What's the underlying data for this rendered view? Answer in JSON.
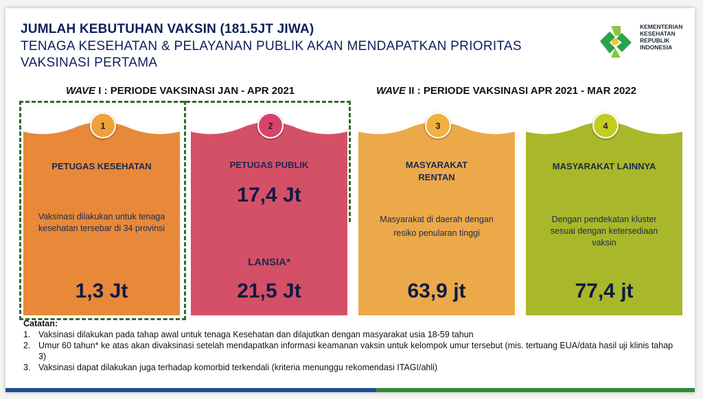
{
  "header": {
    "title": "JUMLAH KEBUTUHAN VAKSIN (181.5JT JIWA)",
    "subtitle": "TENAGA KESEHATAN & PELAYANAN PUBLIK AKAN MENDAPATKAN PRIORITAS VAKSINASI PERTAMA"
  },
  "logo": {
    "lines": [
      "KEMENTERIAN",
      "KESEHATAN",
      "REPUBLIK",
      "INDONESIA"
    ],
    "icon": "kemenkes-logo-icon"
  },
  "waves": [
    {
      "wave_word": "WAVE",
      "rest": " I : PERIODE VAKSINASI JAN - APR 2021"
    },
    {
      "wave_word": "WAVE",
      "rest": " II : PERIODE VAKSINASI APR 2021 - MAR 2022"
    }
  ],
  "cards": [
    {
      "number": "1",
      "title": "PETUGAS KESEHATAN",
      "description": "Vaksinasi dilakukan untuk tenaga kesehatan tersebar di 34 provinsi",
      "value": "1,3 Jt",
      "color": "#e8893a",
      "badge_color": "#f0a13a"
    },
    {
      "number": "2",
      "title": "PETUGAS PUBLIK",
      "value_top": "17,4 Jt",
      "subtitle": "LANSIA*",
      "value": "21,5 Jt",
      "color": "#d45067",
      "badge_color": "#d9436a"
    },
    {
      "number": "3",
      "title": "MASYARAKAT RENTAN",
      "description": "Masyarakat di daerah dengan resiko penularan tinggi",
      "value": "63,9 jt",
      "color": "#eca94a",
      "badge_color": "#f2b040"
    },
    {
      "number": "4",
      "title": "MASYARAKAT LAINNYA",
      "description": "Dengan pendekatan kluster sesuai dengan ketersediaan vaksin",
      "value": "77,4 jt",
      "color": "#a9b82a",
      "badge_color": "#c4cc1f"
    }
  ],
  "notes": {
    "heading": "Catatan:",
    "items": [
      {
        "num": "1.",
        "text": "Vaksinasi dilakukan pada tahap awal untuk tenaga Kesehatan dan dilajutkan dengan masyarakat usia 18-59 tahun"
      },
      {
        "num": "2.",
        "text": "Umur 60 tahun* ke atas akan divaksinasi setelah mendapatkan informasi keamanan vaksin untuk kelompok umur tersebut (mis. tertuang EUA/data hasil uji klinis tahap 3)"
      },
      {
        "num": "3.",
        "text": "Vaksinasi dapat dilakukan juga terhadap komorbid terkendali (kriteria menunggu rekomendasi ITAGI/ahli)"
      }
    ]
  },
  "colors": {
    "title": "#0e1f5b",
    "dashed_border": "#2f6b2a",
    "bottom_bar_left": "#1f4e8c",
    "bottom_bar_right": "#2e8b3a"
  }
}
